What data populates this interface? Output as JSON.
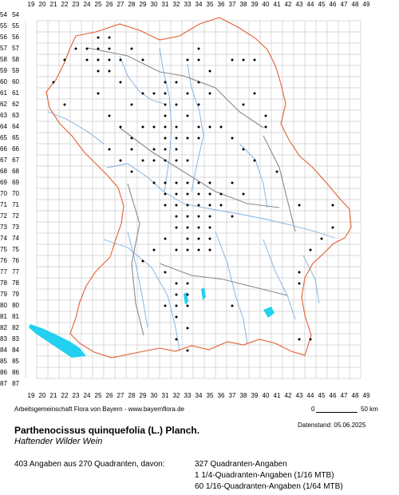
{
  "grid": {
    "x_labels": [
      "19",
      "20",
      "21",
      "22",
      "23",
      "24",
      "25",
      "26",
      "27",
      "28",
      "29",
      "30",
      "31",
      "32",
      "33",
      "34",
      "35",
      "36",
      "37",
      "38",
      "39",
      "40",
      "41",
      "42",
      "43",
      "44",
      "45",
      "46",
      "47",
      "48",
      "49"
    ],
    "y_labels": [
      "54",
      "55",
      "56",
      "57",
      "58",
      "59",
      "60",
      "61",
      "62",
      "63",
      "64",
      "65",
      "66",
      "67",
      "68",
      "69",
      "70",
      "71",
      "72",
      "73",
      "74",
      "75",
      "76",
      "77",
      "78",
      "79",
      "80",
      "81",
      "82",
      "83",
      "84",
      "85",
      "86",
      "87"
    ]
  },
  "colors": {
    "grid": "#b5b5b5",
    "border_outer": "#e06030",
    "border_inner": "#8a8a8a",
    "rivers": "#7fb0e0",
    "lakes": "#22d0f0",
    "points": "#000000"
  },
  "occurrences": [
    {
      "col": 25,
      "row": 57
    },
    {
      "col": 26,
      "row": 57
    },
    {
      "col": 24,
      "row": 58
    },
    {
      "col": 25,
      "row": 58
    },
    {
      "col": 26,
      "row": 56
    },
    {
      "col": 27,
      "row": 58
    },
    {
      "col": 28,
      "row": 57
    },
    {
      "col": 29,
      "row": 58
    },
    {
      "col": 26,
      "row": 59
    },
    {
      "col": 27,
      "row": 60
    },
    {
      "col": 25,
      "row": 61
    },
    {
      "col": 22,
      "row": 62
    },
    {
      "col": 21,
      "row": 60
    },
    {
      "col": 26,
      "row": 63
    },
    {
      "col": 27,
      "row": 64
    },
    {
      "col": 28,
      "row": 62
    },
    {
      "col": 29,
      "row": 61
    },
    {
      "col": 30,
      "row": 61
    },
    {
      "col": 31,
      "row": 60
    },
    {
      "col": 31,
      "row": 61
    },
    {
      "col": 32,
      "row": 60
    },
    {
      "col": 32,
      "row": 62
    },
    {
      "col": 31,
      "row": 63
    },
    {
      "col": 31,
      "row": 64
    },
    {
      "col": 31,
      "row": 65
    },
    {
      "col": 32,
      "row": 64
    },
    {
      "col": 32,
      "row": 65
    },
    {
      "col": 32,
      "row": 66
    },
    {
      "col": 33,
      "row": 65
    },
    {
      "col": 31,
      "row": 66
    },
    {
      "col": 30,
      "row": 66
    },
    {
      "col": 30,
      "row": 67
    },
    {
      "col": 31,
      "row": 67
    },
    {
      "col": 32,
      "row": 67
    },
    {
      "col": 33,
      "row": 67
    },
    {
      "col": 33,
      "row": 58
    },
    {
      "col": 34,
      "row": 58
    },
    {
      "col": 34,
      "row": 57
    },
    {
      "col": 35,
      "row": 59
    },
    {
      "col": 34,
      "row": 60
    },
    {
      "col": 33,
      "row": 61
    },
    {
      "col": 35,
      "row": 61
    },
    {
      "col": 34,
      "row": 62
    },
    {
      "col": 35,
      "row": 64
    },
    {
      "col": 36,
      "row": 64
    },
    {
      "col": 37,
      "row": 65
    },
    {
      "col": 38,
      "row": 66
    },
    {
      "col": 39,
      "row": 67
    },
    {
      "col": 39,
      "row": 61
    },
    {
      "col": 38,
      "row": 62
    },
    {
      "col": 40,
      "row": 63
    },
    {
      "col": 40,
      "row": 64
    },
    {
      "col": 38,
      "row": 58
    },
    {
      "col": 39,
      "row": 58
    },
    {
      "col": 37,
      "row": 58
    },
    {
      "col": 27,
      "row": 67
    },
    {
      "col": 28,
      "row": 68
    },
    {
      "col": 29,
      "row": 67
    },
    {
      "col": 30,
      "row": 69
    },
    {
      "col": 31,
      "row": 69
    },
    {
      "col": 31,
      "row": 70
    },
    {
      "col": 31,
      "row": 71
    },
    {
      "col": 32,
      "row": 69
    },
    {
      "col": 32,
      "row": 70
    },
    {
      "col": 32,
      "row": 71
    },
    {
      "col": 33,
      "row": 69
    },
    {
      "col": 33,
      "row": 70
    },
    {
      "col": 33,
      "row": 71
    },
    {
      "col": 33,
      "row": 72
    },
    {
      "col": 34,
      "row": 69
    },
    {
      "col": 34,
      "row": 70
    },
    {
      "col": 34,
      "row": 71
    },
    {
      "col": 34,
      "row": 72
    },
    {
      "col": 35,
      "row": 69
    },
    {
      "col": 35,
      "row": 70
    },
    {
      "col": 35,
      "row": 71
    },
    {
      "col": 35,
      "row": 72
    },
    {
      "col": 36,
      "row": 70
    },
    {
      "col": 36,
      "row": 71
    },
    {
      "col": 32,
      "row": 72
    },
    {
      "col": 32,
      "row": 73
    },
    {
      "col": 33,
      "row": 73
    },
    {
      "col": 34,
      "row": 73
    },
    {
      "col": 35,
      "row": 73
    },
    {
      "col": 35,
      "row": 74
    },
    {
      "col": 34,
      "row": 74
    },
    {
      "col": 33,
      "row": 74
    },
    {
      "col": 33,
      "row": 75
    },
    {
      "col": 34,
      "row": 75
    },
    {
      "col": 35,
      "row": 75
    },
    {
      "col": 32,
      "row": 75
    },
    {
      "col": 31,
      "row": 74
    },
    {
      "col": 30,
      "row": 75
    },
    {
      "col": 29,
      "row": 76
    },
    {
      "col": 37,
      "row": 69
    },
    {
      "col": 38,
      "row": 70
    },
    {
      "col": 37,
      "row": 72
    },
    {
      "col": 43,
      "row": 71
    },
    {
      "col": 46,
      "row": 71
    },
    {
      "col": 46,
      "row": 73
    },
    {
      "col": 45,
      "row": 74
    },
    {
      "col": 44,
      "row": 75
    },
    {
      "col": 43,
      "row": 77
    },
    {
      "col": 43,
      "row": 78
    },
    {
      "col": 31,
      "row": 77
    },
    {
      "col": 32,
      "row": 78
    },
    {
      "col": 33,
      "row": 78
    },
    {
      "col": 32,
      "row": 79
    },
    {
      "col": 33,
      "row": 79
    },
    {
      "col": 31,
      "row": 80
    },
    {
      "col": 32,
      "row": 80
    },
    {
      "col": 33,
      "row": 80
    },
    {
      "col": 32,
      "row": 81
    },
    {
      "col": 33,
      "row": 82
    },
    {
      "col": 32,
      "row": 83
    },
    {
      "col": 33,
      "row": 84
    },
    {
      "col": 37,
      "row": 80
    },
    {
      "col": 43,
      "row": 83
    },
    {
      "col": 44,
      "row": 83
    },
    {
      "col": 22,
      "row": 58
    },
    {
      "col": 23,
      "row": 57
    },
    {
      "col": 24,
      "row": 57
    },
    {
      "col": 25,
      "row": 56
    },
    {
      "col": 26,
      "row": 58
    },
    {
      "col": 25,
      "row": 59
    },
    {
      "col": 30,
      "row": 64
    },
    {
      "col": 29,
      "row": 64
    },
    {
      "col": 28,
      "row": 66
    },
    {
      "col": 28,
      "row": 65
    },
    {
      "col": 26,
      "row": 66
    },
    {
      "col": 34,
      "row": 64
    },
    {
      "col": 34,
      "row": 65
    },
    {
      "col": 33,
      "row": 63
    },
    {
      "col": 31,
      "row": 62
    },
    {
      "col": 41,
      "row": 68
    }
  ],
  "footer": {
    "credit": "Arbeitsgemeinschaft Flora von Bayern - www.bayernflora.de",
    "scale_zero": "0",
    "scale_end": "50 km",
    "date": "Datenstand: 05.06.2025"
  },
  "species": {
    "scientific_name": "Parthenocissus quinquefolia (L.) Planch.",
    "common_name": "Haftender Wilder Wein"
  },
  "statistics": {
    "summary": "403 Angaben aus 270 Quadranten, davon:",
    "line1": "327 Quadranten-Angaben",
    "line2": "1 1/4-Quadranten-Angaben (1/16 MTB)",
    "line3": "60 1/16-Quadranten-Angaben (1/64 MTB)"
  }
}
